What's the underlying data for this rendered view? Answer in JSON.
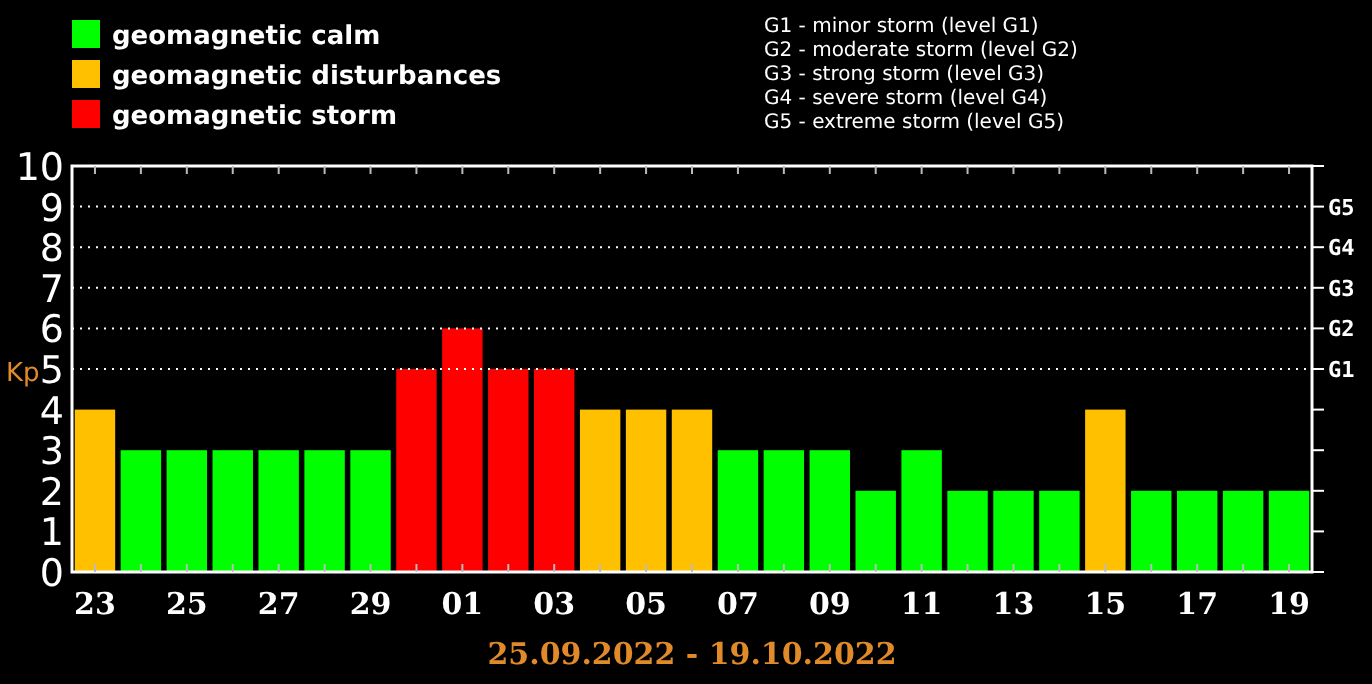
{
  "chart_data": {
    "type": "bar",
    "xlabel": "25.09.2022 - 19.10.2022",
    "ylabel": "Kp",
    "categories": [
      "23",
      null,
      "25",
      null,
      "27",
      null,
      "29",
      null,
      "01",
      null,
      "03",
      null,
      "05",
      null,
      "07",
      null,
      "09",
      null,
      "11",
      null,
      "13",
      null,
      "15",
      null,
      "17",
      null,
      "19"
    ],
    "series": [
      {
        "name": "geomagnetic calm",
        "color": "#00ff00",
        "values": [
          null,
          3,
          3,
          3,
          3,
          3,
          3,
          null,
          null,
          null,
          null,
          null,
          null,
          null,
          3,
          3,
          3,
          2,
          3,
          2,
          2,
          2,
          null,
          2,
          2,
          2,
          2
        ]
      },
      {
        "name": "geomagnetic disturbances",
        "color": "#ffc000",
        "values": [
          4,
          null,
          null,
          null,
          null,
          null,
          null,
          null,
          null,
          null,
          null,
          4,
          4,
          4,
          null,
          null,
          null,
          null,
          null,
          null,
          null,
          null,
          4,
          null,
          null,
          null,
          null
        ]
      },
      {
        "name": "geomagnetic storm",
        "color": "#ff0000",
        "values": [
          null,
          null,
          null,
          null,
          null,
          null,
          null,
          5,
          6,
          5,
          5,
          null,
          null,
          null,
          null,
          null,
          null,
          null,
          null,
          null,
          null,
          null,
          null,
          null,
          null,
          null,
          null
        ]
      }
    ],
    "ylim": [
      0,
      10
    ],
    "yticks": [
      0,
      1,
      2,
      3,
      4,
      5,
      6,
      7,
      8,
      9,
      10
    ],
    "ref_lines": [
      {
        "axis": "y",
        "value": 5,
        "label": "G1",
        "line_style": "dotted"
      },
      {
        "axis": "y",
        "value": 6,
        "label": "G2",
        "line_style": "dotted"
      },
      {
        "axis": "y",
        "value": 7,
        "label": "G3",
        "line_style": "dotted"
      },
      {
        "axis": "y",
        "value": 8,
        "label": "G4",
        "line_style": "dotted"
      },
      {
        "axis": "y",
        "value": 9,
        "label": "G5",
        "line_style": "dotted"
      }
    ],
    "legend": "top left",
    "annotations": [
      "G1 - minor storm (level G1)",
      "G2 - moderate storm (level G2)",
      "G3 - strong storm (level G3)",
      "G4 - severe storm (level G4)",
      "G5 - extreme storm (level G5)"
    ]
  }
}
